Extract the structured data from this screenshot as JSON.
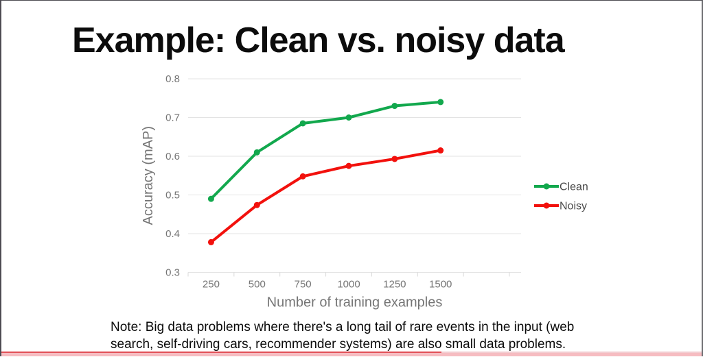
{
  "slide": {
    "title": "Example: Clean vs. noisy data",
    "note": "Note: Big data problems where there's a long tail of rare events in the input (web search, self-driving cars, recommender systems) are also small data problems."
  },
  "chart_data": {
    "type": "line",
    "title": "",
    "xlabel": "Number of training examples",
    "ylabel": "Accuracy (mAP)",
    "categories": [
      "250",
      "500",
      "750",
      "1000",
      "1250",
      "1500"
    ],
    "series": [
      {
        "name": "Clean",
        "color": "#12a84d",
        "values": [
          0.49,
          0.61,
          0.685,
          0.7,
          0.73,
          0.74
        ]
      },
      {
        "name": "Noisy",
        "color": "#f2110d",
        "values": [
          0.378,
          0.474,
          0.548,
          0.575,
          0.593,
          0.615
        ]
      }
    ],
    "y_ticks": [
      "0.3",
      "0.4",
      "0.5",
      "0.6",
      "0.7",
      "0.8"
    ],
    "ylim": [
      0.3,
      0.8
    ],
    "grid": "horizontal",
    "legend_position": "right",
    "gridline_color": "#e3e3e3",
    "tick_color": "#d9d9d9",
    "axis_text_color": "#757575",
    "legend_text_color": "#4a4a4a"
  },
  "player": {
    "progress_percent": 62.8,
    "track_color": "#f6bcc1",
    "played_color": "#e25056",
    "unplayed_edge_color": "#f3ced2"
  }
}
